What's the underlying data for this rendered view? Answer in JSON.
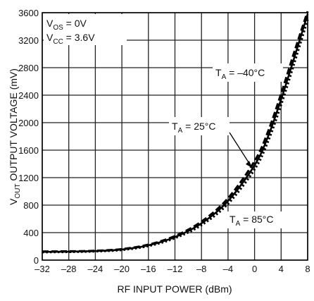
{
  "chart_data": {
    "type": "line",
    "title": "",
    "xlabel": "RF INPUT POWER (dBm)",
    "ylabel": {
      "v": "V",
      "sub": "OUT",
      "rest": " OUTPUT VOLTAGE (mV)"
    },
    "xlim": [
      -32,
      8
    ],
    "ylim": [
      0,
      3600
    ],
    "xticks": [
      -32,
      -28,
      -24,
      -20,
      -16,
      -12,
      -8,
      -4,
      0,
      4,
      8
    ],
    "xtick_labels": [
      "–32",
      "–28",
      "–24",
      "–20",
      "–16",
      "–12",
      "–8",
      "–4",
      "0",
      "4",
      "8"
    ],
    "yticks": [
      0,
      400,
      800,
      1200,
      1600,
      2000,
      2400,
      2800,
      3200,
      3600
    ],
    "ytick_labels": [
      "0",
      "400",
      "800",
      "1200",
      "1600",
      "2000",
      "2400",
      "2800",
      "3200",
      "3600"
    ],
    "grid": true,
    "conditions": [
      {
        "v": "V",
        "sub": "OS",
        "rest": " = 0V"
      },
      {
        "v": "V",
        "sub": "CC",
        "rest": " = 3.6V"
      }
    ],
    "series": [
      {
        "name": {
          "t": "T",
          "sub": "A",
          "rest": " = –40°C"
        },
        "style": "dashed",
        "x": [
          -32,
          -28,
          -24,
          -20,
          -16,
          -12,
          -8,
          -4,
          0,
          2,
          4,
          6,
          8
        ],
        "y": [
          125,
          128,
          135,
          160,
          225,
          350,
          560,
          900,
          1440,
          1860,
          2420,
          3030,
          3620
        ]
      },
      {
        "name": {
          "t": "T",
          "sub": "A",
          "rest": " = 25°C"
        },
        "style": "solid",
        "x": [
          -32,
          -28,
          -24,
          -20,
          -16,
          -12,
          -8,
          -4,
          0,
          2,
          4,
          6,
          8
        ],
        "y": [
          120,
          124,
          132,
          155,
          215,
          335,
          535,
          860,
          1380,
          1790,
          2340,
          2950,
          3580
        ]
      },
      {
        "name": {
          "t": "T",
          "sub": "A",
          "rest": " = 85°C"
        },
        "style": "dotted",
        "x": [
          -32,
          -28,
          -24,
          -20,
          -16,
          -12,
          -8,
          -4,
          0,
          2,
          4,
          6,
          8
        ],
        "y": [
          115,
          119,
          127,
          148,
          205,
          320,
          510,
          820,
          1320,
          1720,
          2260,
          2870,
          3500
        ]
      }
    ]
  }
}
